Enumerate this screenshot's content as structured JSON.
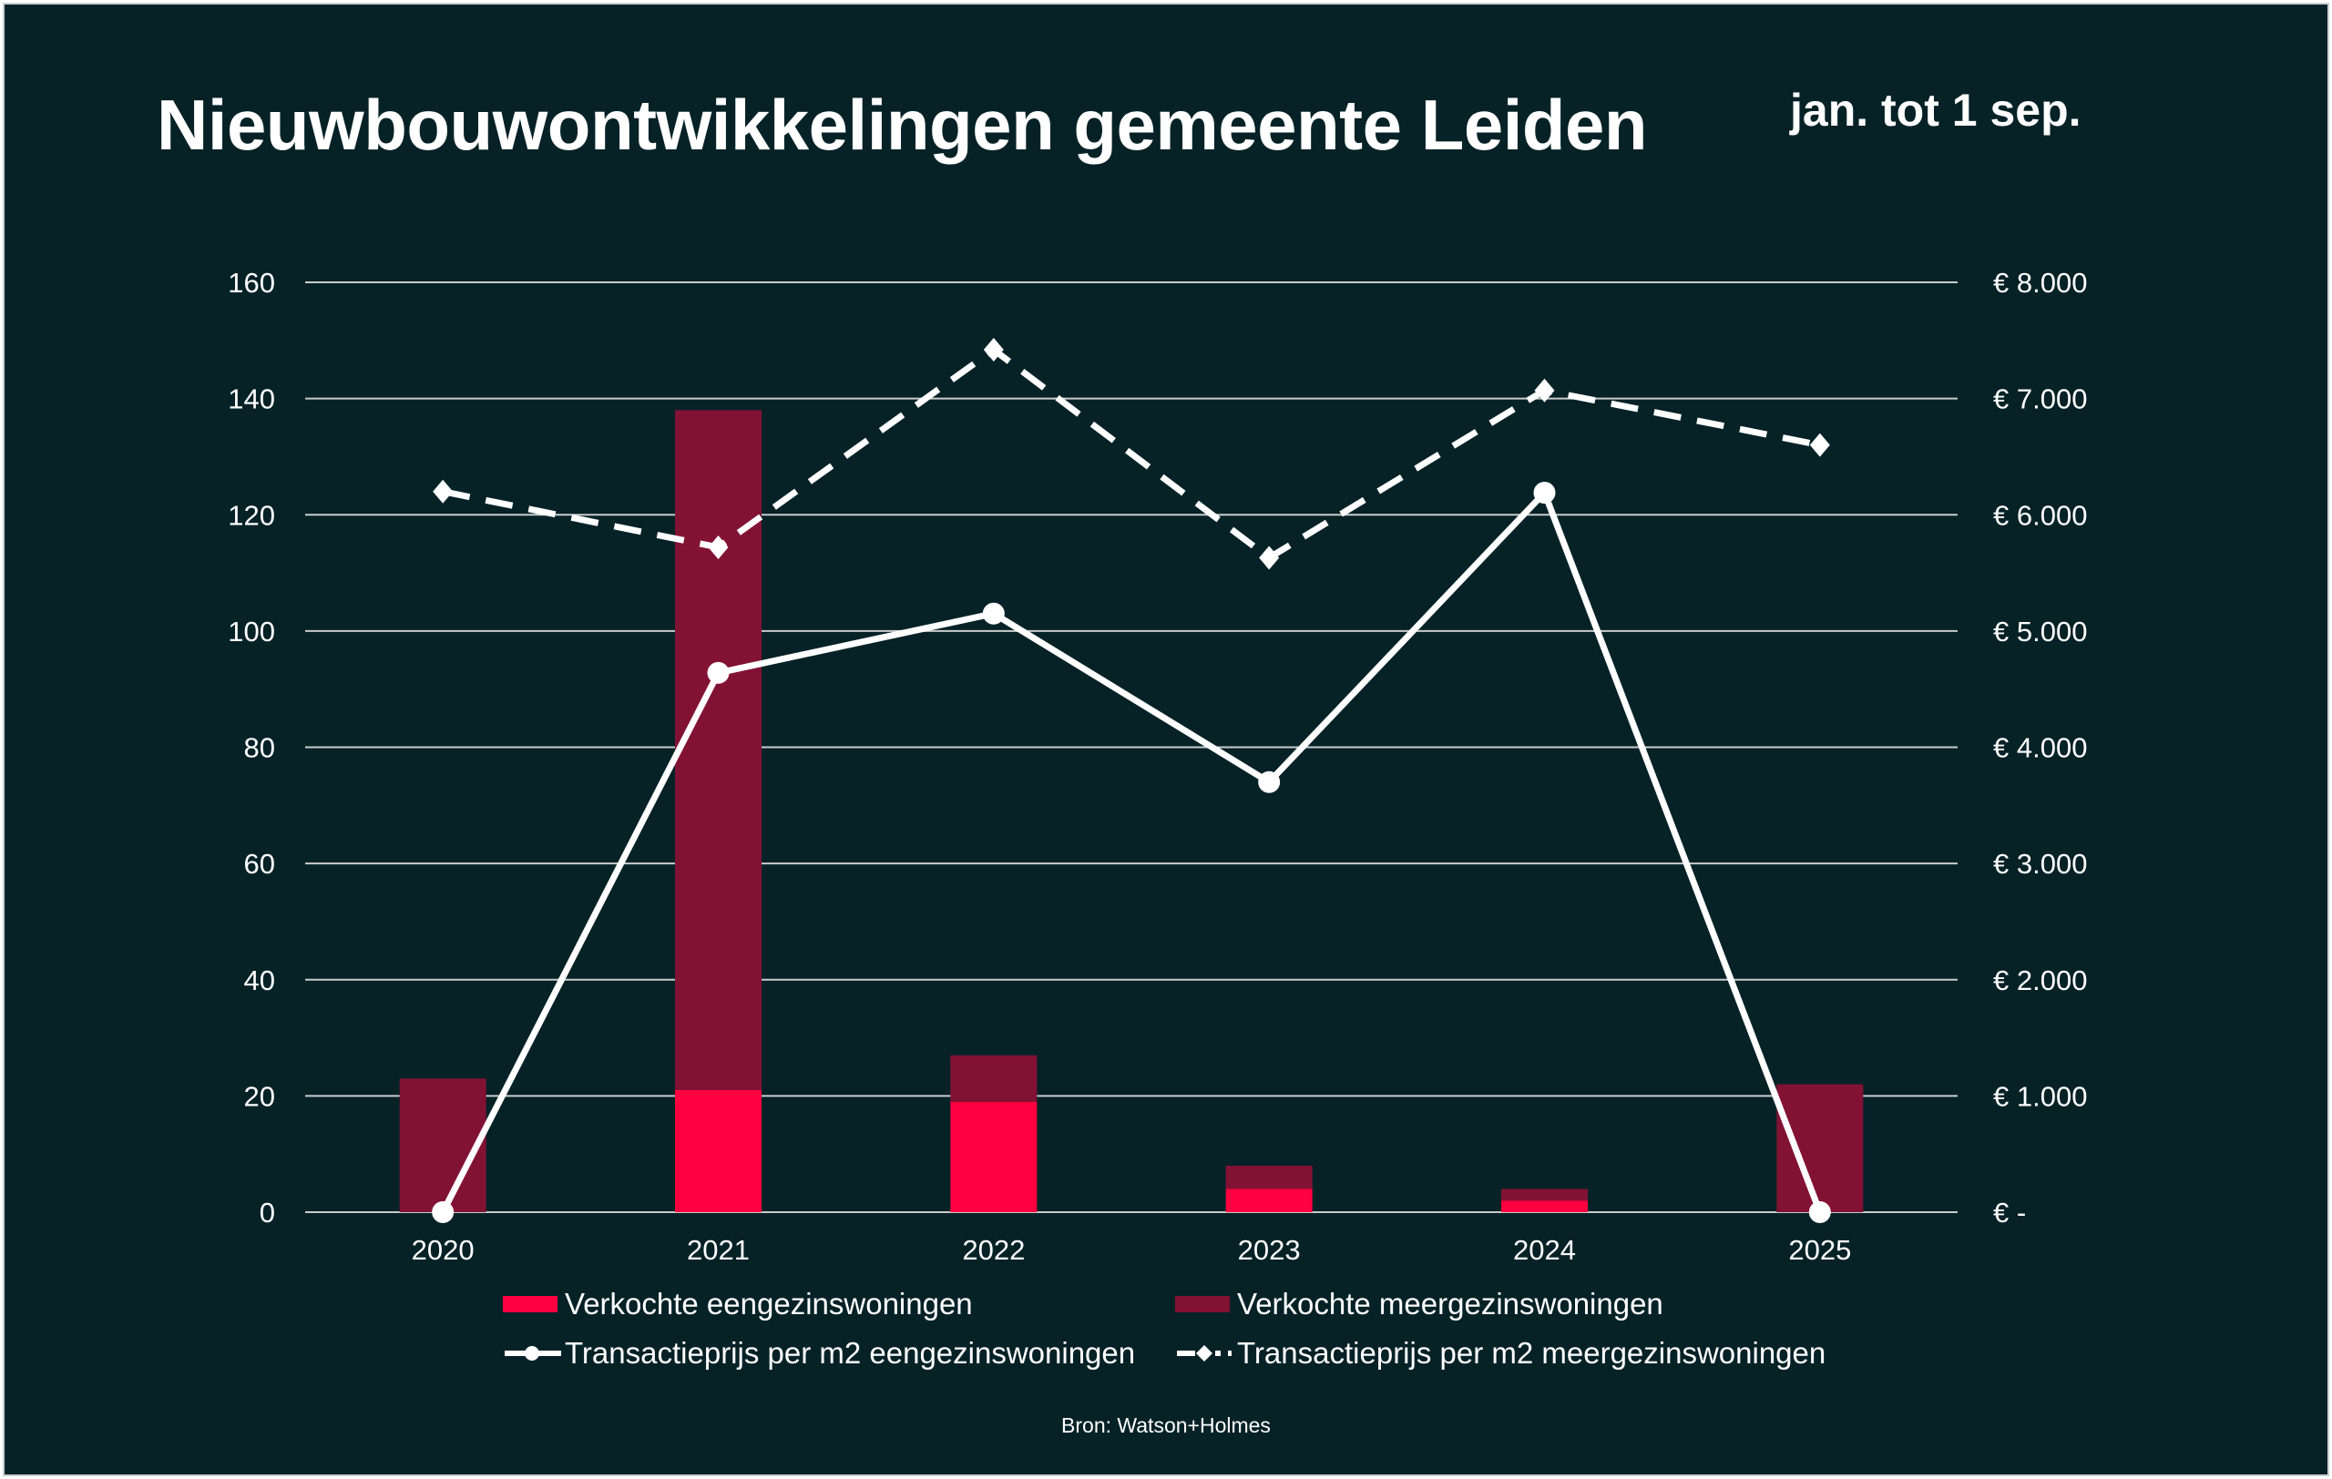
{
  "title": "Nieuwbouwontwikkelingen gemeente Leiden",
  "subtitle": "jan. tot 1 sep.",
  "source": "Bron: Watson+Holmes",
  "colors": {
    "background": "#062227",
    "eengezins_bar": "#ff0040",
    "meergezins_bar": "#821234",
    "lines": "#ffffff",
    "grid": "#c8cccc"
  },
  "chart_data": {
    "type": "bar",
    "stacked": true,
    "categories": [
      "2020",
      "2021",
      "2022",
      "2023",
      "2024",
      "2025"
    ],
    "ylim": [
      0,
      160
    ],
    "yticks": [
      "0",
      "20",
      "40",
      "60",
      "80",
      "100",
      "120",
      "140",
      "160"
    ],
    "y2lim": [
      0,
      8000
    ],
    "y2ticks": [
      "€ -",
      "€ 1.000",
      "€ 2.000",
      "€ 3.000",
      "€ 4.000",
      "€ 5.000",
      "€ 6.000",
      "€ 7.000",
      "€ 8.000"
    ],
    "grid": true,
    "legend_position": "bottom",
    "series": [
      {
        "name": "Verkochte eengezinswoningen",
        "type": "bar",
        "axis": "left",
        "values": [
          0,
          21,
          19,
          4,
          2,
          0
        ]
      },
      {
        "name": "Verkochte meergezinswoningen",
        "type": "bar",
        "axis": "left",
        "values": [
          23,
          117,
          8,
          4,
          2,
          22
        ]
      },
      {
        "name": "Transactieprijs per m2 eengezinswoningen",
        "type": "line",
        "axis": "right",
        "marker": "circle",
        "dash": "solid",
        "values": [
          0,
          4640,
          5150,
          3700,
          6190,
          0
        ]
      },
      {
        "name": "Transactieprijs per m2 meergezinswoningen",
        "type": "line",
        "axis": "right",
        "marker": "diamond",
        "dash": "dashed",
        "values": [
          6200,
          5720,
          7420,
          5630,
          7070,
          6600
        ]
      }
    ]
  }
}
